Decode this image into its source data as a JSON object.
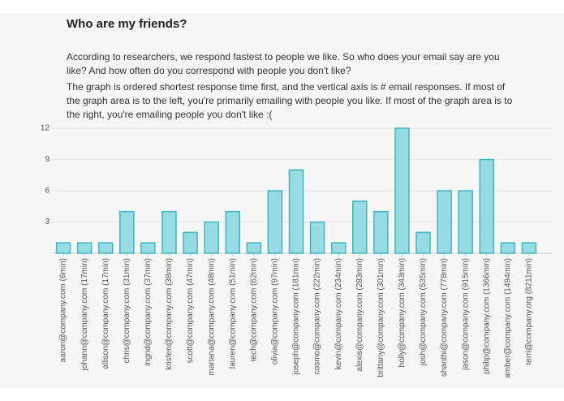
{
  "header": {
    "title": "Who are my friends?",
    "paragraphs": [
      "According to researchers, we respond fastest to people we like. So who does your email say are you like? And how often do you correspond with people you don't like?",
      "The graph is ordered shortest response time first, and the vertical axis is # email responses. If most of the graph area is to the left, you're primarily emailing with people you like. If most of the graph area is to the right, you're emailing people you don't like :("
    ]
  },
  "chart_data": {
    "type": "bar",
    "categories": [
      "aaron@company.com (6min)",
      "johann@company.com (17min)",
      "allison@company.com (17min)",
      "chris@company.com (31min)",
      "ingrid@company.com (37min)",
      "kristen@company.com (38min)",
      "scott@company.com (47min)",
      "mariana@company.com (48min)",
      "lauren@company.com (51min)",
      "tech@company.com (62min)",
      "olivia@company.com (97min)",
      "joseph@company.com (181min)",
      "cosmo@company.com (222min)",
      "kevin@company.com (234min)",
      "alexis@company.com (283min)",
      "brittany@company.com (301min)",
      "holly@company.com (343min)",
      "josh@company.com (535min)",
      "shanthi@company.com (778min)",
      "jason@company.com (915min)",
      "philip@company.com (1366min)",
      "amber@company.com (1494min)",
      "terri@company.org (8211min)"
    ],
    "values": [
      1,
      1,
      1,
      4,
      1,
      4,
      2,
      3,
      4,
      1,
      6,
      8,
      3,
      1,
      5,
      4,
      12,
      2,
      6,
      6,
      9,
      1,
      1
    ],
    "color": "#98dce3",
    "edge_color": "#3fb6c3",
    "ylim": [
      0,
      12
    ],
    "yticks": [
      3,
      6,
      9,
      12
    ],
    "grid": true
  }
}
